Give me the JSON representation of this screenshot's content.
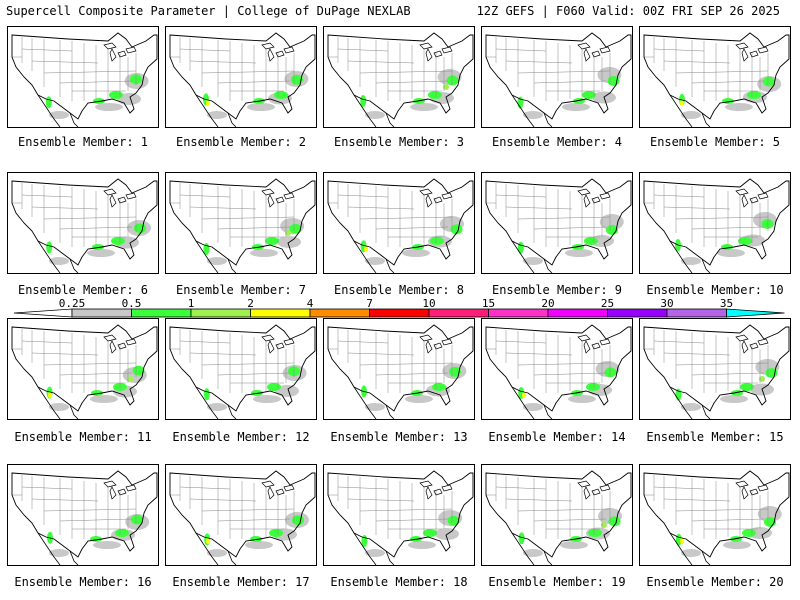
{
  "header": {
    "left_title": "Supercell Composite Parameter | College of DuPage NEXLAB",
    "right_title": "12Z GEFS | F060 Valid: 00Z FRI SEP 26 2025"
  },
  "panels": [
    {
      "label": "Ensemble Member: 1"
    },
    {
      "label": "Ensemble Member: 2"
    },
    {
      "label": "Ensemble Member: 3"
    },
    {
      "label": "Ensemble Member: 4"
    },
    {
      "label": "Ensemble Member: 5"
    },
    {
      "label": "Ensemble Member: 6"
    },
    {
      "label": "Ensemble Member: 7"
    },
    {
      "label": "Ensemble Member: 8"
    },
    {
      "label": "Ensemble Member: 9"
    },
    {
      "label": "Ensemble Member: 10"
    },
    {
      "label": "Ensemble Member: 11"
    },
    {
      "label": "Ensemble Member: 12"
    },
    {
      "label": "Ensemble Member: 13"
    },
    {
      "label": "Ensemble Member: 14"
    },
    {
      "label": "Ensemble Member: 15"
    },
    {
      "label": "Ensemble Member: 16"
    },
    {
      "label": "Ensemble Member: 17"
    },
    {
      "label": "Ensemble Member: 18"
    },
    {
      "label": "Ensemble Member: 19"
    },
    {
      "label": "Ensemble Member: 20"
    }
  ],
  "colorbar": {
    "ticks": [
      "0.25",
      "0.5",
      "1",
      "2",
      "4",
      "7",
      "10",
      "15",
      "20",
      "25",
      "30",
      "35"
    ],
    "colors": [
      "#c8c8c8",
      "#3cff3c",
      "#a0f050",
      "#ffff00",
      "#ff8c00",
      "#ff0000",
      "#ff1e78",
      "#ff32c8",
      "#f000ff",
      "#9600ff",
      "#b464e6",
      "#00ffff"
    ]
  },
  "map_colors": {
    "light": "#c8c8c8",
    "green": "#3cff3c",
    "lime": "#a0f050",
    "yellow": "#ffff00"
  }
}
